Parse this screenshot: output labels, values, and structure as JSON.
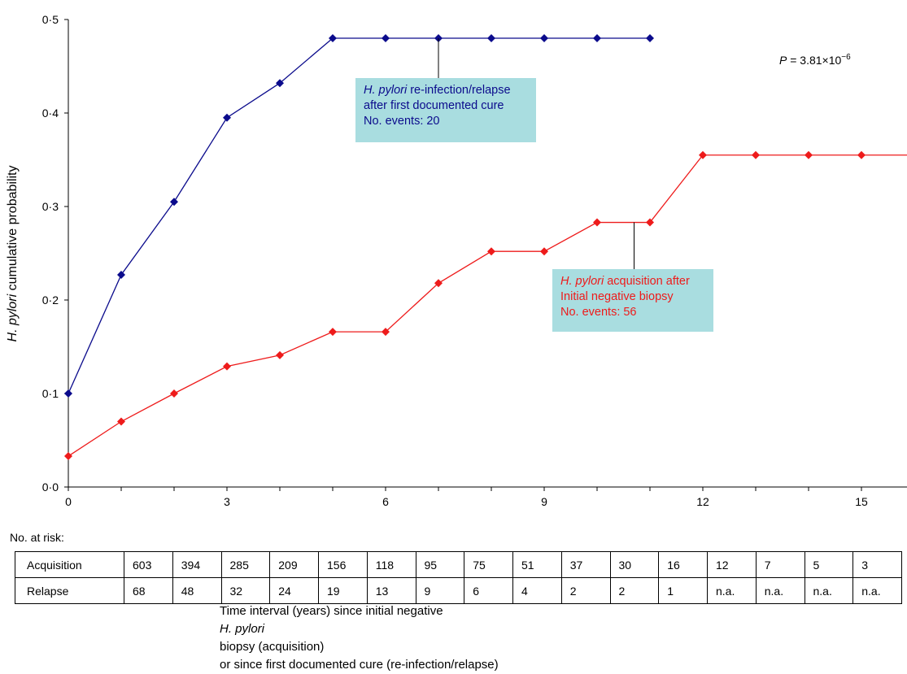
{
  "chart_data": {
    "type": "line",
    "ylabel": {
      "italic": "H. pylori",
      "rest": " cumulative probability"
    },
    "xlim": [
      0,
      17
    ],
    "ylim": [
      0,
      0.5
    ],
    "x_ticks": [
      0,
      3,
      6,
      9,
      12,
      15
    ],
    "y_ticks": [
      {
        "value": 0.0,
        "label": "0·0"
      },
      {
        "value": 0.1,
        "label": "0·1"
      },
      {
        "value": 0.2,
        "label": "0·2"
      },
      {
        "value": 0.3,
        "label": "0·3"
      },
      {
        "value": 0.4,
        "label": "0·4"
      },
      {
        "value": 0.5,
        "label": "0·5"
      }
    ],
    "p_value": {
      "label": "P",
      "text": " = 3.81×10",
      "exponent": "−6"
    },
    "series": [
      {
        "key": "relapse",
        "color": "#0b0b8c",
        "x": [
          0,
          1,
          2,
          3,
          4,
          5,
          6,
          7,
          8,
          9,
          10,
          11
        ],
        "values": [
          0.1,
          0.227,
          0.305,
          0.395,
          0.432,
          0.48,
          0.48,
          0.48,
          0.48,
          0.48,
          0.48,
          0.48
        ],
        "annotation_at_x": 7
      },
      {
        "key": "acquisition",
        "color": "#ee1b1b",
        "x": [
          0,
          1,
          2,
          3,
          4,
          5,
          6,
          7,
          8,
          9,
          10,
          11,
          12,
          13,
          14,
          15,
          17
        ],
        "values": [
          0.033,
          0.07,
          0.1,
          0.129,
          0.141,
          0.166,
          0.166,
          0.218,
          0.252,
          0.252,
          0.283,
          0.283,
          0.355,
          0.355,
          0.355,
          0.355,
          0.355
        ],
        "marker_count": 16,
        "annotation_at_x": 10.7
      }
    ],
    "annotations": {
      "relapse": {
        "italic": "H. pylori",
        "line1_rest": " re-infection/relapse",
        "line2": "after first documented cure",
        "line3": "No. events: 20"
      },
      "acquisition": {
        "italic": "H. pylori",
        "line1_rest": " acquisition after",
        "line2": "Initial negative biopsy",
        "line3": "No. events: 56"
      }
    },
    "at_risk": {
      "title": "No. at risk:",
      "rows": [
        {
          "label": "Acquisition",
          "values": [
            "603",
            "394",
            "285",
            "209",
            "156",
            "118",
            "95",
            "75",
            "51",
            "37",
            "30",
            "16",
            "12",
            "7",
            "5",
            "3"
          ]
        },
        {
          "label": "Relapse",
          "values": [
            "68",
            "48",
            "32",
            "24",
            "19",
            "13",
            "9",
            "6",
            "4",
            "2",
            "2",
            "1",
            "n.a.",
            "n.a.",
            "n.a.",
            "n.a."
          ]
        }
      ]
    },
    "xlabel": {
      "line1_pre": "Time interval (years) since initial negative ",
      "line1_italic": "H. pylori",
      "line1_post": " biopsy (acquisition)",
      "line2": "or since first documented cure (re-infection/relapse)"
    }
  }
}
